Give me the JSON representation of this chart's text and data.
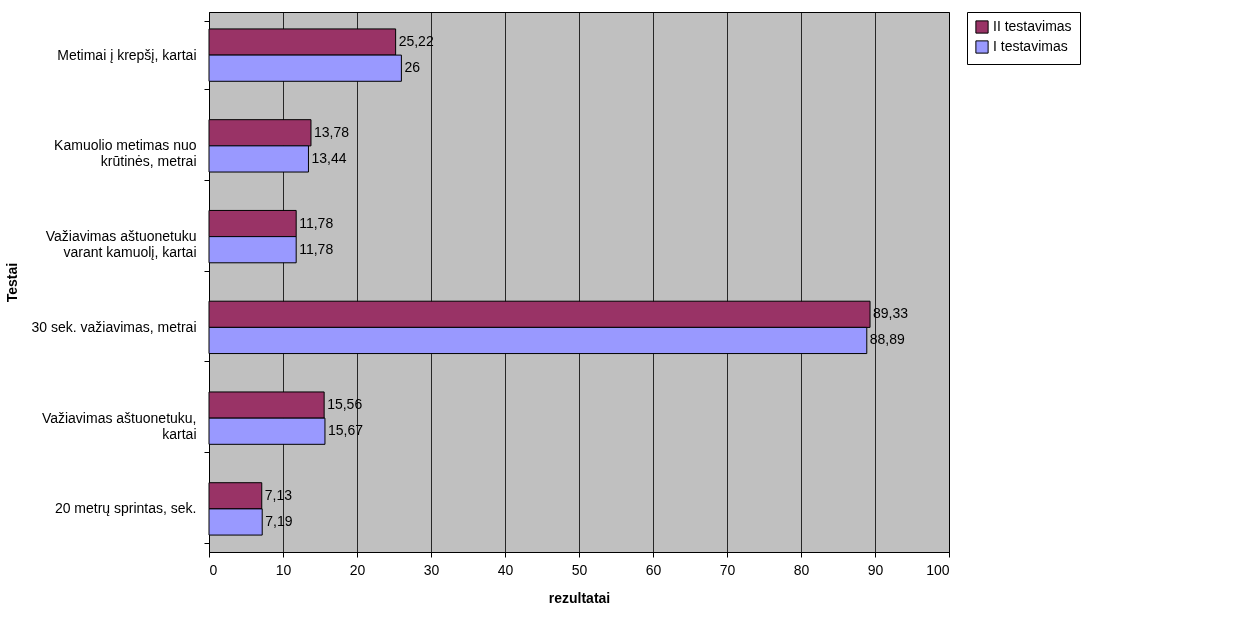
{
  "chart_data": {
    "type": "bar",
    "orientation": "horizontal",
    "categories": [
      "Metimai į krepšį, kartai",
      "Kamuolio metimas nuo krūtinės, metrai",
      "Važiavimas aštuonetuku varant kamuolį, kartai",
      "30 sek. važiavimas, metrai",
      "Važiavimas aštuonetuku, kartai",
      "20 metrų sprintas, sek."
    ],
    "series": [
      {
        "name": "II testavimas",
        "color": "#993366",
        "values": [
          25.22,
          13.78,
          11.78,
          89.33,
          15.56,
          7.13
        ],
        "value_labels": [
          "25,22",
          "13,78",
          "11,78",
          "89,33",
          "15,56",
          "7,13"
        ]
      },
      {
        "name": "I testavimas",
        "color": "#9999ff",
        "values": [
          26,
          13.44,
          11.78,
          88.89,
          15.67,
          7.19
        ],
        "value_labels": [
          "26",
          "13,44",
          "11,78",
          "88,89",
          "15,67",
          "7,19"
        ]
      }
    ],
    "xlabel": "rezultatai",
    "ylabel": "Testai",
    "xlim": [
      0,
      100
    ],
    "xticks": [
      0,
      10,
      20,
      30,
      40,
      50,
      60,
      70,
      80,
      90,
      100
    ],
    "grid": "x",
    "legend": "right"
  }
}
